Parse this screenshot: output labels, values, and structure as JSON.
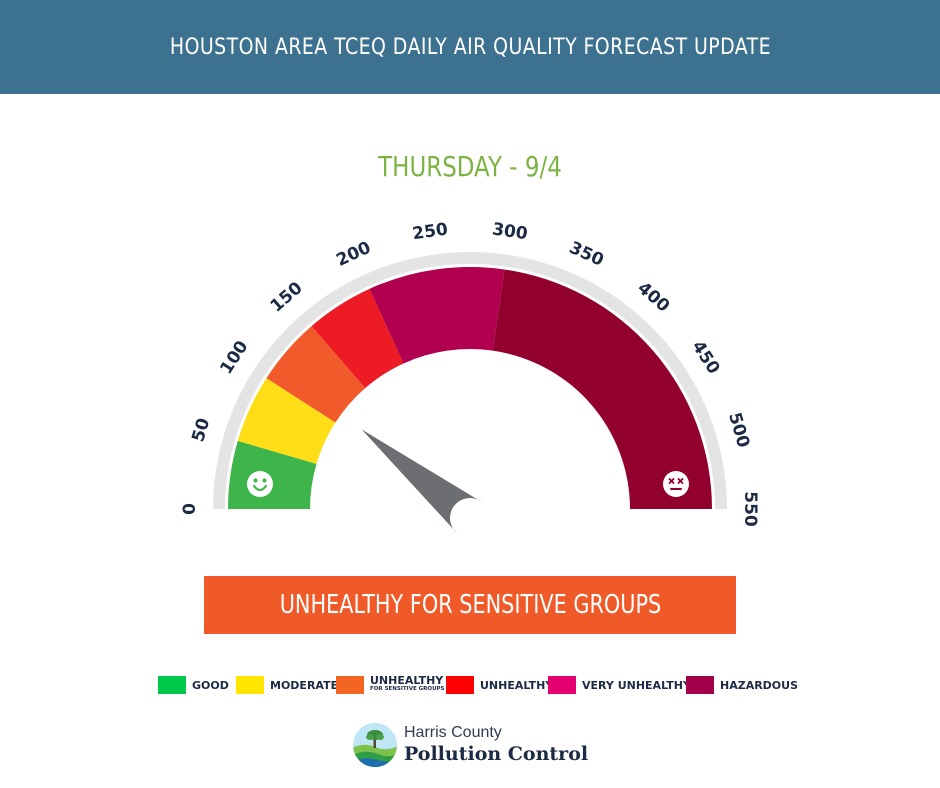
{
  "header": {
    "title": "HOUSTON AREA TCEQ DAILY AIR QUALITY FORECAST UPDATE"
  },
  "forecast": {
    "day_label": "THURSDAY - 9/4",
    "category_label": "UNHEALTHY FOR SENSITIVE GROUPS"
  },
  "chart_data": {
    "type": "gauge",
    "title": "THURSDAY - 9/4",
    "range": [
      0,
      550
    ],
    "ticks": [
      0,
      50,
      100,
      150,
      200,
      250,
      300,
      350,
      400,
      450,
      500,
      550
    ],
    "needle_value": 120,
    "bands": [
      {
        "name": "GOOD",
        "from": 0,
        "to": 50,
        "color": "#3db54a"
      },
      {
        "name": "MODERATE",
        "from": 50,
        "to": 100,
        "color": "#ffde17"
      },
      {
        "name": "UNHEALTHY FOR SENSITIVE GROUPS",
        "from": 100,
        "to": 150,
        "color": "#f15a2b"
      },
      {
        "name": "UNHEALTHY",
        "from": 150,
        "to": 200,
        "color": "#ed1c24"
      },
      {
        "name": "VERY UNHEALTHY",
        "from": 200,
        "to": 300,
        "color": "#b0004f"
      },
      {
        "name": "HAZARDOUS",
        "from": 300,
        "to": 550,
        "color": "#92002d"
      }
    ]
  },
  "legend": {
    "items": [
      {
        "label": "GOOD",
        "color": "#00c84b"
      },
      {
        "label": "MODERATE",
        "color": "#ffe500"
      },
      {
        "label": "UNHEALTHY",
        "sublabel": "FOR SENSITIVE GROUPS",
        "color": "#f26522"
      },
      {
        "label": "UNHEALTHY",
        "color": "#ff0000"
      },
      {
        "label": "VERY UNHEALTHY",
        "color": "#e4006f"
      },
      {
        "label": "HAZARDOUS",
        "color": "#a3004a"
      }
    ]
  },
  "logo": {
    "line1": "Harris County",
    "line2": "Pollution Control"
  }
}
